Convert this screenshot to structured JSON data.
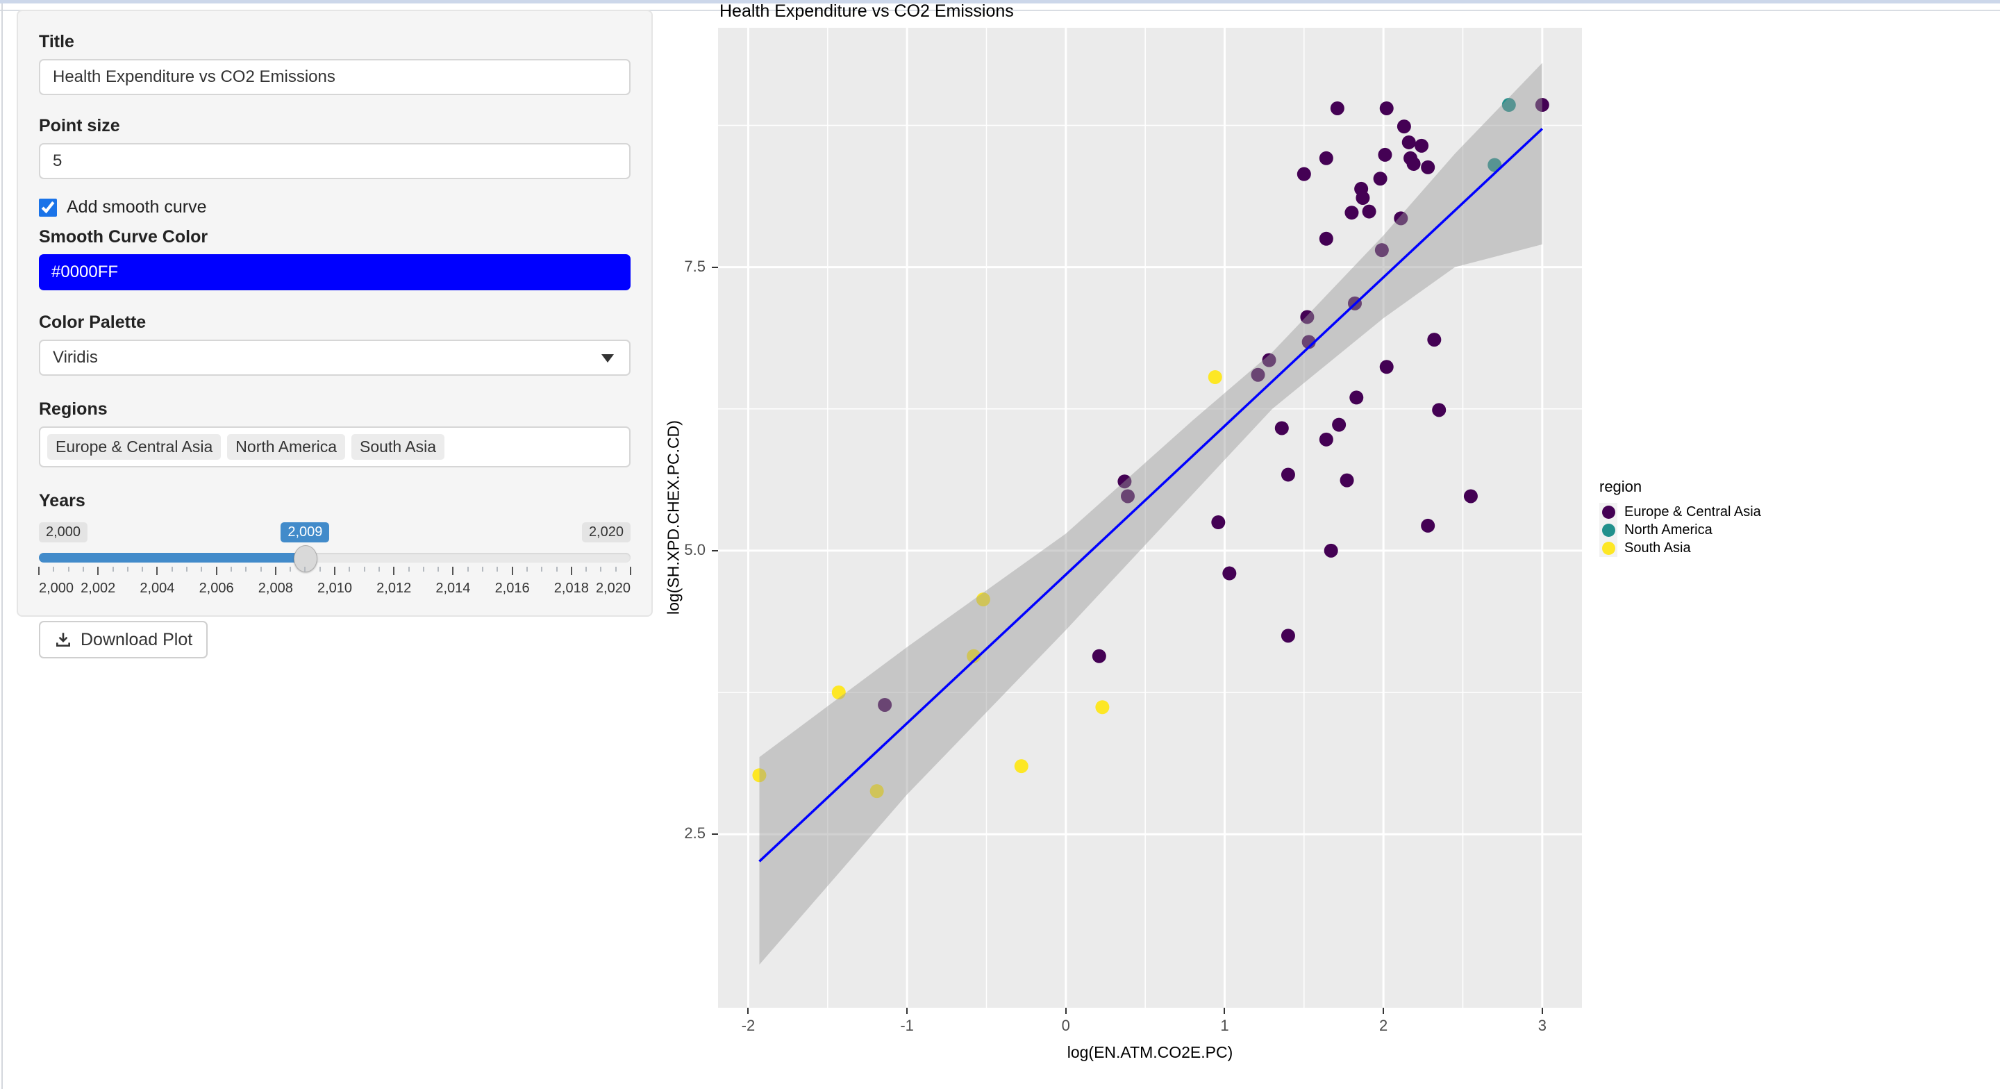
{
  "window": {
    "top_strip_color": "#ccd7ea"
  },
  "sidebar": {
    "title_label": "Title",
    "title_value": "Health Expenditure vs CO2 Emissions",
    "point_size_label": "Point size",
    "point_size_value": "5",
    "smooth_checkbox_label": "Add smooth curve",
    "smooth_checked": true,
    "smooth_color_label": "Smooth Curve Color",
    "smooth_color_value": "#0000FF",
    "palette_label": "Color Palette",
    "palette_value": "Viridis",
    "regions_label": "Regions",
    "regions": [
      "Europe & Central Asia",
      "North America",
      "South Asia"
    ],
    "years_label": "Years",
    "slider": {
      "min": 2000,
      "max": 2020,
      "value": 2009,
      "min_label": "2,000",
      "value_label": "2,009",
      "max_label": "2,020",
      "bar_color": "#428bca",
      "grid_labels": [
        "2,000",
        "2,002",
        "2,004",
        "2,006",
        "2,008",
        "2,010",
        "2,012",
        "2,014",
        "2,016",
        "2,018",
        "2,020"
      ]
    },
    "download_label": "Download Plot"
  },
  "chart_data": {
    "type": "scatter",
    "title": "Health Expenditure vs CO2 Emissions",
    "xlabel": "log(EN.ATM.CO2E.PC)",
    "ylabel": "log(SH.XPD.CHEX.PC.CD)",
    "xlim": [
      -2.19,
      3.25
    ],
    "ylim": [
      0.97,
      9.61
    ],
    "x_ticks": [
      -2,
      -1,
      0,
      1,
      2,
      3
    ],
    "x_tick_labels": [
      "-2",
      "-1",
      "0",
      "1",
      "2",
      "3"
    ],
    "x_minor": [
      -1.5,
      -0.5,
      0.5,
      1.5,
      2.5
    ],
    "y_ticks": [
      2.5,
      5.0,
      7.5
    ],
    "y_tick_labels": [
      "2.5",
      "5.0",
      "7.5"
    ],
    "y_minor": [
      3.75,
      6.25,
      8.75
    ],
    "grid": true,
    "legend_title": "region",
    "legend_position": "right",
    "panel_bg": "#EBEBEB",
    "grid_color": "#FFFFFF",
    "point_radius": 10,
    "series": [
      {
        "name": "Europe & Central Asia",
        "color": "#440154",
        "points": [
          [
            1.71,
            8.9
          ],
          [
            2.02,
            8.9
          ],
          [
            3.0,
            8.93
          ],
          [
            2.13,
            8.74
          ],
          [
            2.16,
            8.6
          ],
          [
            2.24,
            8.57
          ],
          [
            1.64,
            8.46
          ],
          [
            1.5,
            8.32
          ],
          [
            2.01,
            8.49
          ],
          [
            2.17,
            8.46
          ],
          [
            2.19,
            8.41
          ],
          [
            2.28,
            8.38
          ],
          [
            1.98,
            8.28
          ],
          [
            1.86,
            8.19
          ],
          [
            1.87,
            8.11
          ],
          [
            1.8,
            7.98
          ],
          [
            1.91,
            7.99
          ],
          [
            2.11,
            7.93
          ],
          [
            1.64,
            7.75
          ],
          [
            1.99,
            7.65
          ],
          [
            1.82,
            7.18
          ],
          [
            1.52,
            7.06
          ],
          [
            1.53,
            6.84
          ],
          [
            1.28,
            6.68
          ],
          [
            1.21,
            6.55
          ],
          [
            2.32,
            6.86
          ],
          [
            2.02,
            6.62
          ],
          [
            1.83,
            6.35
          ],
          [
            2.35,
            6.24
          ],
          [
            1.72,
            6.11
          ],
          [
            1.36,
            6.08
          ],
          [
            1.64,
            5.98
          ],
          [
            0.37,
            5.61
          ],
          [
            0.39,
            5.48
          ],
          [
            1.4,
            5.67
          ],
          [
            1.77,
            5.62
          ],
          [
            2.55,
            5.48
          ],
          [
            0.96,
            5.25
          ],
          [
            2.28,
            5.22
          ],
          [
            1.67,
            5.0
          ],
          [
            1.03,
            4.8
          ],
          [
            1.4,
            4.25
          ],
          [
            0.21,
            4.07
          ],
          [
            -1.14,
            3.64
          ]
        ]
      },
      {
        "name": "North America",
        "color": "#21908C",
        "points": [
          [
            2.79,
            8.93
          ],
          [
            2.7,
            8.4
          ]
        ]
      },
      {
        "name": "South Asia",
        "color": "#FDE725",
        "points": [
          [
            0.94,
            6.53
          ],
          [
            -0.52,
            4.57
          ],
          [
            -0.58,
            4.07
          ],
          [
            -1.43,
            3.75
          ],
          [
            0.23,
            3.62
          ],
          [
            -0.28,
            3.1
          ],
          [
            -1.93,
            3.02
          ],
          [
            -1.19,
            2.88
          ]
        ]
      }
    ],
    "smooth": {
      "color": "#0000FF",
      "line": [
        [
          -1.93,
          2.26
        ],
        [
          3.0,
          8.72
        ]
      ],
      "ribbon_upper": [
        [
          -1.93,
          3.18
        ],
        [
          -1.0,
          4.15
        ],
        [
          0.0,
          5.15
        ],
        [
          0.8,
          6.15
        ],
        [
          1.3,
          6.75
        ],
        [
          2.0,
          7.78
        ],
        [
          2.45,
          8.5
        ],
        [
          3.0,
          9.3
        ]
      ],
      "ribbon_lower": [
        [
          -1.93,
          1.35
        ],
        [
          -1.0,
          2.85
        ],
        [
          0.0,
          4.3
        ],
        [
          0.8,
          5.5
        ],
        [
          1.3,
          6.25
        ],
        [
          2.0,
          7.05
        ],
        [
          2.45,
          7.5
        ],
        [
          3.0,
          7.7
        ]
      ],
      "ribbon_color": "#999999",
      "ribbon_opacity": 0.45
    }
  }
}
